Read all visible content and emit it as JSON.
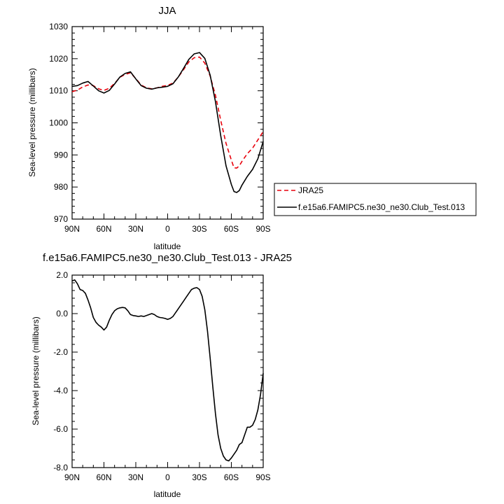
{
  "chart_data": [
    {
      "type": "line",
      "title": "JJA",
      "xlabel": "latitude",
      "ylabel": "Sea-level pressure (millibars)",
      "xlim": [
        90,
        -90
      ],
      "ylim": [
        970,
        1030
      ],
      "xticks": [
        90,
        60,
        30,
        0,
        -30,
        -60,
        -90
      ],
      "xtick_labels": [
        "90N",
        "60N",
        "30N",
        "0",
        "30S",
        "60S",
        "90S"
      ],
      "yticks": [
        970,
        980,
        990,
        1000,
        1010,
        1020,
        1030
      ],
      "ytick_labels": [
        "970",
        "980",
        "990",
        "1000",
        "1010",
        "1020",
        "1030"
      ],
      "grid": false,
      "legend_position": "right",
      "series": [
        {
          "name": "JRA25",
          "color": "#e8000b",
          "dash": "dashed",
          "x": [
            90,
            85,
            80,
            75,
            70,
            65,
            60,
            55,
            50,
            45,
            40,
            35,
            30,
            25,
            20,
            15,
            10,
            5,
            0,
            -5,
            -10,
            -15,
            -20,
            -25,
            -30,
            -35,
            -40,
            -45,
            -50,
            -55,
            -60,
            -62.5,
            -65,
            -67.5,
            -70,
            -75,
            -80,
            -85,
            -90
          ],
          "y": [
            1009.7,
            1010.2,
            1011.2,
            1011.8,
            1011.6,
            1010.6,
            1010.1,
            1010.8,
            1012.3,
            1014.2,
            1015.1,
            1015.6,
            1013.8,
            1011.8,
            1010.9,
            1010.6,
            1010.9,
            1011.4,
            1011.7,
            1012.4,
            1014.3,
            1016.6,
            1019.0,
            1020.3,
            1020.5,
            1018.6,
            1014.6,
            1008.6,
            1000.8,
            993.6,
            988.4,
            986.0,
            985.9,
            986.6,
            988.0,
            990.4,
            992.1,
            994.7,
            997.3
          ]
        },
        {
          "name": "f.e15a6.FAMIPC5.ne30_ne30.Club_Test.013",
          "color": "#000000",
          "dash": "solid",
          "x": [
            90,
            85,
            80,
            75,
            70,
            65,
            60,
            55,
            50,
            45,
            40,
            35,
            30,
            25,
            20,
            15,
            10,
            5,
            0,
            -5,
            -10,
            -15,
            -20,
            -25,
            -30,
            -35,
            -40,
            -45,
            -50,
            -55,
            -60,
            -62.5,
            -65,
            -67.5,
            -70,
            -75,
            -80,
            -85,
            -90
          ],
          "y": [
            1011.4,
            1011.6,
            1012.4,
            1012.9,
            1011.5,
            1010.0,
            1009.3,
            1010.1,
            1012.1,
            1014.3,
            1015.4,
            1015.9,
            1013.7,
            1011.6,
            1010.8,
            1010.5,
            1010.9,
            1011.1,
            1011.4,
            1012.2,
            1014.3,
            1017.0,
            1019.8,
            1021.5,
            1021.9,
            1020.1,
            1014.9,
            1006.6,
            996.0,
            986.6,
            980.8,
            978.6,
            978.3,
            978.9,
            980.6,
            983.3,
            985.5,
            988.8,
            994.2
          ]
        }
      ]
    },
    {
      "type": "line",
      "title": "f.e15a6.FAMIPC5.ne30_ne30.Club_Test.013 - JRA25",
      "xlabel": "latitude",
      "ylabel": "Sea-level pressure (millibars)",
      "xlim": [
        90,
        -90
      ],
      "ylim": [
        -8,
        2
      ],
      "xticks": [
        90,
        60,
        30,
        0,
        -30,
        -60,
        -90
      ],
      "xtick_labels": [
        "90N",
        "60N",
        "30N",
        "0",
        "30S",
        "60S",
        "90S"
      ],
      "yticks": [
        -8,
        -6,
        -4,
        -2,
        0,
        2
      ],
      "ytick_labels": [
        "-8.0",
        "-6.0",
        "-4.0",
        "-2.0",
        "0.0",
        "2.0"
      ],
      "grid": false,
      "series": [
        {
          "color": "#000000",
          "dash": "solid",
          "x": [
            90,
            87.5,
            85,
            82.5,
            80,
            77.5,
            75,
            72.5,
            70,
            67.5,
            65,
            62.5,
            60,
            57.5,
            55,
            52.5,
            50,
            47.5,
            45,
            42.5,
            40,
            37.5,
            35,
            32.5,
            30,
            27.5,
            25,
            22.5,
            20,
            17.5,
            15,
            12.5,
            10,
            7.5,
            5,
            2.5,
            0,
            -2.5,
            -5,
            -7.5,
            -10,
            -12.5,
            -15,
            -17.5,
            -20,
            -22.5,
            -25,
            -27.5,
            -30,
            -32.5,
            -35,
            -37.5,
            -40,
            -42.5,
            -45,
            -47.5,
            -50,
            -52.5,
            -55,
            -57.5,
            -60,
            -62.5,
            -65,
            -67.5,
            -70,
            -72.5,
            -75,
            -77.5,
            -80,
            -82.5,
            -85,
            -87.5,
            -90
          ],
          "y": [
            1.7,
            1.75,
            1.55,
            1.25,
            1.2,
            1.05,
            0.7,
            0.3,
            -0.2,
            -0.45,
            -0.6,
            -0.7,
            -0.85,
            -0.7,
            -0.35,
            -0.05,
            0.15,
            0.25,
            0.3,
            0.32,
            0.3,
            0.15,
            -0.05,
            -0.1,
            -0.12,
            -0.15,
            -0.12,
            -0.15,
            -0.1,
            -0.05,
            0.0,
            -0.05,
            -0.15,
            -0.2,
            -0.22,
            -0.25,
            -0.3,
            -0.25,
            -0.15,
            0.05,
            0.25,
            0.45,
            0.65,
            0.85,
            1.05,
            1.25,
            1.32,
            1.35,
            1.25,
            0.9,
            0.2,
            -0.9,
            -2.3,
            -3.8,
            -5.2,
            -6.3,
            -7.0,
            -7.4,
            -7.6,
            -7.65,
            -7.5,
            -7.3,
            -7.1,
            -6.8,
            -6.7,
            -6.3,
            -5.9,
            -5.9,
            -5.8,
            -5.5,
            -5.0,
            -4.2,
            -3.1
          ]
        }
      ]
    }
  ]
}
